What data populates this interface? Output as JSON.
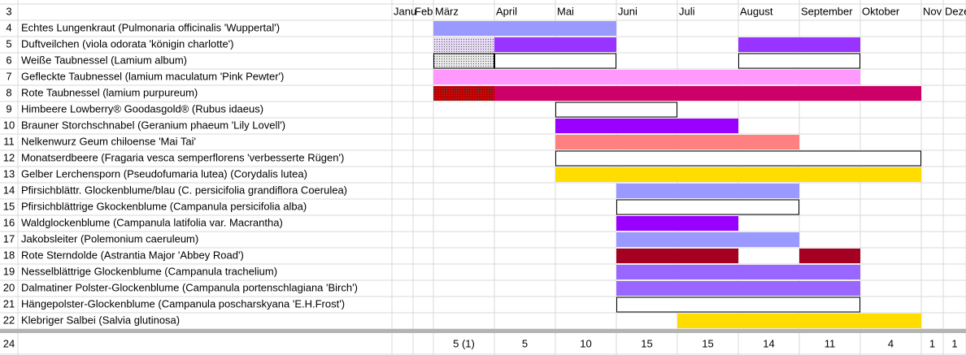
{
  "header_number": 3,
  "months": [
    "Janu",
    "Feb",
    "März",
    "April",
    "Mai",
    "Juni",
    "Juli",
    "August",
    "September",
    "Oktober",
    "Nov",
    "Deze"
  ],
  "rows": [
    {
      "number": 4,
      "name": "Echtes Lungenkraut (Pulmonaria officinalis 'Wuppertal')",
      "bars": [
        {
          "from": "März",
          "to": "Mai",
          "fill": "#9999ff"
        }
      ]
    },
    {
      "number": 5,
      "name": "Duftveilchen (viola odorata 'königin charlotte')",
      "bars": [
        {
          "from": "März",
          "to": "März",
          "fill": "#e6d9f5",
          "pattern": "dots"
        },
        {
          "from": "April",
          "to": "Mai",
          "fill": "#9933ff"
        },
        {
          "from": "August",
          "to": "September",
          "fill": "#9933ff"
        }
      ]
    },
    {
      "number": 6,
      "name": "Weiße Taubnessel (Lamium album)",
      "bars": [
        {
          "from": "März",
          "to": "März",
          "fill": "#e8e8e8",
          "pattern": "dots",
          "border": true
        },
        {
          "from": "April",
          "to": "Mai",
          "fill": "#ffffff",
          "border": true
        },
        {
          "from": "August",
          "to": "September",
          "fill": "#ffffff",
          "border": true
        }
      ]
    },
    {
      "number": 7,
      "name": "Gefleckte Taubnessel (lamium maculatum 'Pink Pewter')",
      "bars": [
        {
          "from": "März",
          "to": "September",
          "fill": "#ff99ff"
        }
      ]
    },
    {
      "number": 8,
      "name": "Rote Taubnessel (lamium purpureum)",
      "bars": [
        {
          "from": "März",
          "to": "März",
          "fill": "#c00000",
          "pattern": "dots"
        },
        {
          "from": "April",
          "to": "Oktober",
          "fill": "#cc0066"
        }
      ]
    },
    {
      "number": 9,
      "name": "Himbeere Lowberry® Goodasgold® (Rubus idaeus)",
      "bars": [
        {
          "from": "Mai",
          "to": "Juni",
          "fill": "#ffffff",
          "border": true
        }
      ]
    },
    {
      "number": 10,
      "name": "Brauner Storchschnabel (Geranium phaeum 'Lily Lovell')",
      "bars": [
        {
          "from": "Mai",
          "to": "Juli",
          "fill": "#9900ff"
        }
      ]
    },
    {
      "number": 11,
      "name": "Nelkenwurz Geum chiloense 'Mai Tai'",
      "bars": [
        {
          "from": "Mai",
          "to": "August",
          "fill": "#ff8080"
        }
      ]
    },
    {
      "number": 12,
      "name": "Monatserdbeere (Fragaria vesca semperflorens 'verbesserte Rügen')",
      "bars": [
        {
          "from": "Mai",
          "to": "Oktober",
          "fill": "#ffffff",
          "border": true
        }
      ]
    },
    {
      "number": 13,
      "name": "Gelber Lerchensporn (Pseudofumaria lutea) (Corydalis lutea)",
      "bars": [
        {
          "from": "Mai",
          "to": "Oktober",
          "fill": "#ffdd00"
        }
      ]
    },
    {
      "number": 14,
      "name": "Pfirsichblättr. Glockenblume/blau (C. persicifolia grandiflora Coerulea)",
      "bars": [
        {
          "from": "Juni",
          "to": "August",
          "fill": "#9999ff"
        }
      ]
    },
    {
      "number": 15,
      "name": "Pfirsichblättrige Gkockenblume (Campanula persicifolia alba)",
      "bars": [
        {
          "from": "Juni",
          "to": "August",
          "fill": "#ffffff",
          "border": true
        }
      ]
    },
    {
      "number": 16,
      "name": "Waldglockenblume (Campanula latifolia var. Macrantha)",
      "bars": [
        {
          "from": "Juni",
          "to": "Juli",
          "fill": "#9900ff"
        }
      ]
    },
    {
      "number": 17,
      "name": "Jakobsleiter (Polemonium caeruleum)",
      "bars": [
        {
          "from": "Juni",
          "to": "August",
          "fill": "#9999ff"
        }
      ]
    },
    {
      "number": 18,
      "name": "Rote Sterndolde (Astrantia Major 'Abbey Road')",
      "bars": [
        {
          "from": "Juni",
          "to": "Juli",
          "fill": "#a50021"
        },
        {
          "from": "September",
          "to": "September",
          "fill": "#a50021"
        }
      ]
    },
    {
      "number": 19,
      "name": "Nesselblättrige Glockenblume (Campanula trachelium)",
      "bars": [
        {
          "from": "Juni",
          "to": "September",
          "fill": "#9966ff"
        }
      ]
    },
    {
      "number": 20,
      "name": "Dalmatiner Polster-Glockenblume (Campanula portenschlagiana 'Birch')",
      "bars": [
        {
          "from": "Juni",
          "to": "September",
          "fill": "#9966ff"
        }
      ]
    },
    {
      "number": 21,
      "name": "Hängepolster-Glockenblume (Campanula poscharskyana 'E.H.Frost')",
      "bars": [
        {
          "from": "Juni",
          "to": "September",
          "fill": "#ffffff",
          "border": true
        }
      ]
    },
    {
      "number": 22,
      "name": "Klebriger Salbei (Salvia glutinosa)",
      "bars": [
        {
          "from": "Juli",
          "to": "Oktober",
          "fill": "#ffdd00"
        }
      ]
    }
  ],
  "footer_number": 24,
  "footer": [
    null,
    null,
    "5 (1)",
    5,
    10,
    15,
    15,
    14,
    11,
    4,
    1,
    1
  ]
}
